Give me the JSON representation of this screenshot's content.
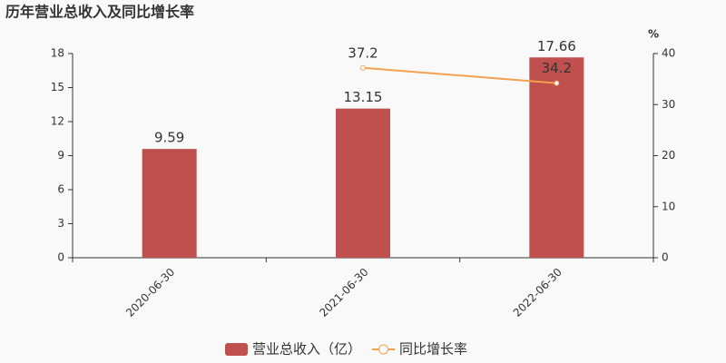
{
  "chart_data": {
    "type": "bar",
    "title": "历年营业总收入及同比增长率",
    "categories": [
      "2020-06-30",
      "2021-06-30",
      "2022-06-30"
    ],
    "series": [
      {
        "name": "营业总收入（亿）",
        "type": "bar",
        "color": "#c0504d",
        "values": [
          9.59,
          13.15,
          17.66
        ]
      },
      {
        "name": "同比增长率",
        "type": "line",
        "axis": "y2",
        "color": "#f5a04e",
        "values": [
          null,
          37.2,
          34.2
        ]
      }
    ],
    "ylim": [
      0,
      18
    ],
    "yticks": [
      0,
      3,
      6,
      9,
      12,
      15,
      18
    ],
    "y2lim": [
      0,
      40
    ],
    "y2ticks": [
      0,
      10,
      20,
      30,
      40
    ],
    "y2_label": "%",
    "legend": "bottom"
  }
}
